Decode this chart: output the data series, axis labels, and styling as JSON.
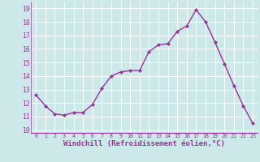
{
  "x": [
    0,
    1,
    2,
    3,
    4,
    5,
    6,
    7,
    8,
    9,
    10,
    11,
    12,
    13,
    14,
    15,
    16,
    17,
    18,
    19,
    20,
    21,
    22,
    23
  ],
  "y": [
    12.6,
    11.8,
    11.2,
    11.1,
    11.3,
    11.3,
    11.9,
    13.1,
    14.0,
    14.3,
    14.4,
    14.4,
    15.8,
    16.3,
    16.4,
    17.3,
    17.7,
    18.9,
    18.0,
    16.5,
    14.9,
    13.3,
    11.8,
    10.5
  ],
  "line_color": "#993399",
  "marker": "D",
  "marker_size": 2.2,
  "linewidth": 1.0,
  "xlabel": "Windchill (Refroidissement éolien,°C)",
  "xlabel_fontsize": 6.5,
  "xlabel_color": "#993399",
  "xlim": [
    -0.5,
    23.5
  ],
  "ylim": [
    9.8,
    19.5
  ],
  "yticks": [
    10,
    11,
    12,
    13,
    14,
    15,
    16,
    17,
    18,
    19
  ],
  "xticks": [
    0,
    1,
    2,
    3,
    4,
    5,
    6,
    7,
    8,
    9,
    10,
    11,
    12,
    13,
    14,
    15,
    16,
    17,
    18,
    19,
    20,
    21,
    22,
    23
  ],
  "xtick_fontsize": 4.8,
  "ytick_fontsize": 5.8,
  "bg_color": "#cce8e8",
  "grid_color": "#ffffff",
  "grid_linewidth": 0.7,
  "tick_label_color": "#993399"
}
